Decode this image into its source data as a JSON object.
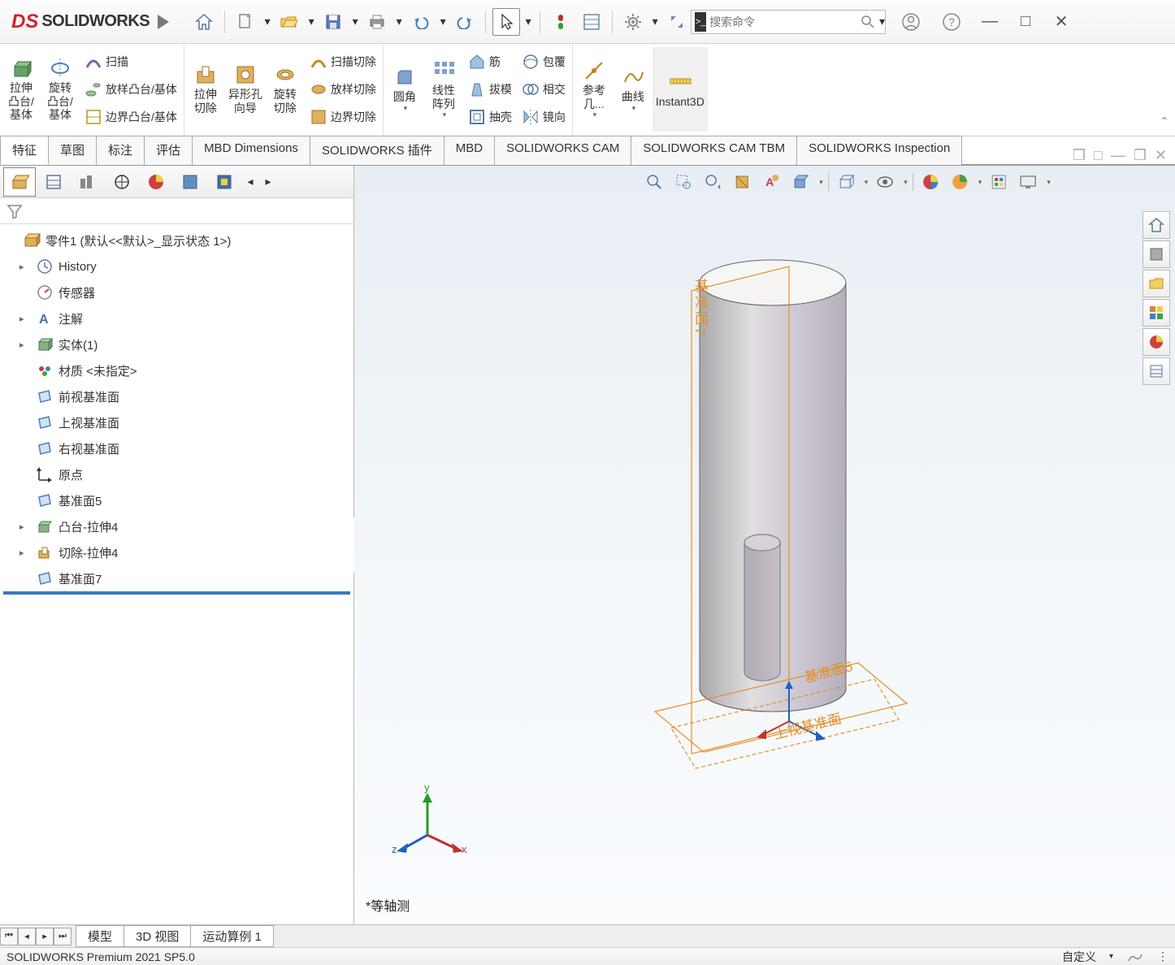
{
  "app": {
    "logo": "SOLIDWORKS"
  },
  "search": {
    "placeholder": "搜索命令"
  },
  "ribbon": {
    "g1": {
      "extrude": "拉伸\n凸台/\n基体",
      "revolve": "旋转\n凸台/\n基体",
      "sweep": "扫描",
      "loft": "放样凸台/基体",
      "boundary": "边界凸台/基体"
    },
    "g2": {
      "extrudeCut": "拉伸\n切除",
      "holeWizard": "异形孔\n向导",
      "revolveCut": "旋转\n切除",
      "sweepCut": "扫描切除",
      "loftCut": "放样切除",
      "boundaryCut": "边界切除"
    },
    "g3": {
      "fillet": "圆角",
      "linearPattern": "线性\n阵列",
      "rib": "筋",
      "draft": "拔模",
      "shell": "抽壳",
      "wrap": "包覆",
      "intersect": "相交",
      "mirror": "镜向"
    },
    "g4": {
      "refGeom": "参考\n几...",
      "curves": "曲线",
      "instant3d": "Instant3D"
    }
  },
  "tabs": {
    "items": [
      "特征",
      "草图",
      "标注",
      "评估",
      "MBD Dimensions",
      "SOLIDWORKS 插件",
      "MBD",
      "SOLIDWORKS CAM",
      "SOLIDWORKS CAM TBM",
      "SOLIDWORKS Inspection"
    ],
    "active": 0
  },
  "tree": {
    "root": "零件1 (默认<<默认>_显示状态 1>)",
    "nodes": [
      {
        "label": "History",
        "icon": "history",
        "exp": false,
        "indent": 1,
        "arrow": true
      },
      {
        "label": "传感器",
        "icon": "sensor",
        "exp": false,
        "indent": 1,
        "arrow": false
      },
      {
        "label": "注解",
        "icon": "annotation",
        "exp": false,
        "indent": 1,
        "arrow": true
      },
      {
        "label": "实体(1)",
        "icon": "solid",
        "exp": false,
        "indent": 1,
        "arrow": true
      },
      {
        "label": "材质 <未指定>",
        "icon": "material",
        "exp": false,
        "indent": 1,
        "arrow": false
      },
      {
        "label": "前视基准面",
        "icon": "plane",
        "exp": false,
        "indent": 1,
        "arrow": false
      },
      {
        "label": "上视基准面",
        "icon": "plane",
        "exp": false,
        "indent": 1,
        "arrow": false
      },
      {
        "label": "右视基准面",
        "icon": "plane",
        "exp": false,
        "indent": 1,
        "arrow": false
      },
      {
        "label": "原点",
        "icon": "origin",
        "exp": false,
        "indent": 1,
        "arrow": false
      },
      {
        "label": "基准面5",
        "icon": "plane",
        "exp": false,
        "indent": 1,
        "arrow": false
      },
      {
        "label": "凸台-拉伸4",
        "icon": "extrude",
        "exp": false,
        "indent": 1,
        "arrow": true
      },
      {
        "label": "切除-拉伸4",
        "icon": "cutextrude",
        "exp": false,
        "indent": 1,
        "arrow": true
      },
      {
        "label": "基准面7",
        "icon": "plane",
        "exp": false,
        "indent": 1,
        "arrow": false
      }
    ]
  },
  "scene": {
    "planeLabels": [
      "基准面7",
      "基准面5",
      "上视基准面"
    ],
    "viewLabel": "*等轴测",
    "triad": {
      "x": "x",
      "y": "y",
      "z": "z"
    },
    "colors": {
      "plane": "#E39128",
      "cylinderTop": "#f6f6f6",
      "cylinderSideL": "#bfbfc3",
      "cylinderSideR": "#d7d2dc",
      "cylinderSlotL": "#b5b0bb",
      "cylinderSlotR": "#c8c2d0",
      "cylinderEdge": "#5a5a5e"
    }
  },
  "btabs": {
    "items": [
      "模型",
      "3D 视图",
      "运动算例 1"
    ],
    "active": 0
  },
  "status": {
    "left": "SOLIDWORKS Premium 2021 SP5.0",
    "right": "自定义"
  }
}
